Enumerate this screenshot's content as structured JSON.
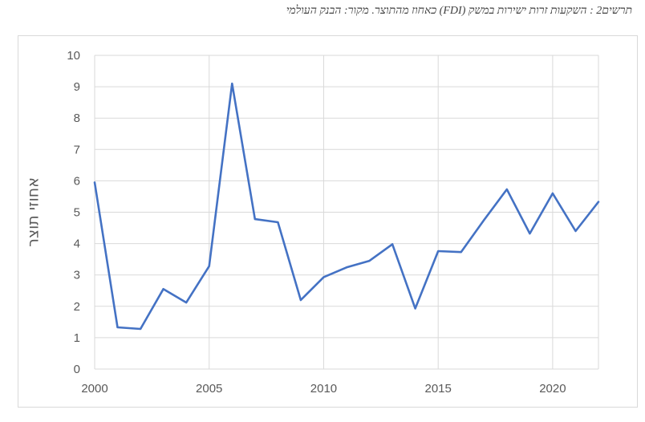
{
  "caption": "תרשים2 : השקעות זרות ישירות במשק (FDI) כאחוז מהתוצר. מקור: הבנק העולמי",
  "chart_data": {
    "type": "line",
    "ylabel": "אחוזי תוצר",
    "xlabel": "",
    "xlim": [
      2000,
      2022
    ],
    "ylim": [
      0,
      10
    ],
    "x_ticks": [
      2000,
      2005,
      2010,
      2015,
      2020
    ],
    "y_ticks": [
      0,
      1,
      2,
      3,
      4,
      5,
      6,
      7,
      8,
      9,
      10
    ],
    "grid": true,
    "legend": "none",
    "series_color": "#4472c4",
    "series": [
      {
        "x": [
          2000,
          2001,
          2002,
          2003,
          2004,
          2005,
          2006,
          2007,
          2008,
          2009,
          2010,
          2011,
          2012,
          2013,
          2014,
          2015,
          2016,
          2017,
          2018,
          2019,
          2020,
          2021,
          2022
        ],
        "y": [
          5.95,
          1.33,
          1.28,
          2.55,
          2.12,
          3.28,
          9.1,
          4.78,
          4.68,
          2.2,
          2.93,
          3.24,
          3.45,
          3.98,
          1.93,
          3.76,
          3.73,
          4.75,
          5.73,
          4.32,
          5.6,
          4.4,
          5.33
        ]
      }
    ]
  }
}
